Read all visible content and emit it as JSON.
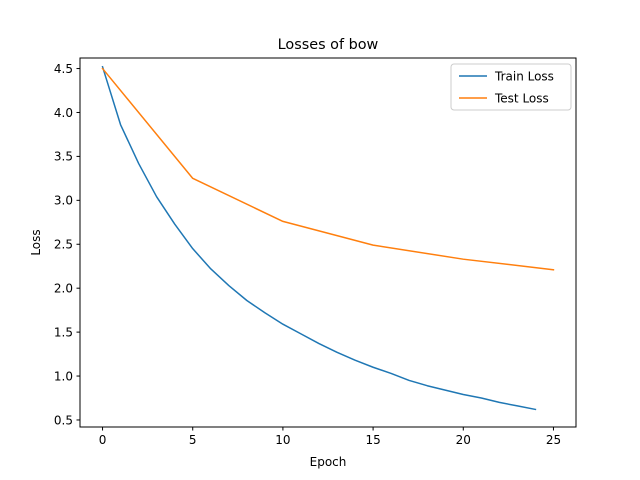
{
  "chart_data": {
    "type": "line",
    "title": "Losses of bow",
    "xlabel": "Epoch",
    "ylabel": "Loss",
    "xlim": [
      -1.25,
      26.25
    ],
    "ylim": [
      0.42,
      4.62
    ],
    "xticks": [
      0,
      5,
      10,
      15,
      20,
      25
    ],
    "xtick_labels": [
      "0",
      "5",
      "10",
      "15",
      "20",
      "25"
    ],
    "yticks": [
      0.5,
      1.0,
      1.5,
      2.0,
      2.5,
      3.0,
      3.5,
      4.0,
      4.5
    ],
    "ytick_labels": [
      "0.5",
      "1.0",
      "1.5",
      "2.0",
      "2.5",
      "3.0",
      "3.5",
      "4.0",
      "4.5"
    ],
    "grid": false,
    "legend_position": "top-right",
    "series": [
      {
        "name": "Train Loss",
        "color": "#1f77b4",
        "x": [
          0,
          1,
          2,
          3,
          4,
          5,
          6,
          7,
          8,
          9,
          10,
          11,
          12,
          13,
          14,
          15,
          16,
          17,
          18,
          19,
          20,
          21,
          22,
          23,
          24
        ],
        "values": [
          4.52,
          3.86,
          3.42,
          3.04,
          2.73,
          2.45,
          2.22,
          2.03,
          1.86,
          1.72,
          1.59,
          1.48,
          1.37,
          1.27,
          1.18,
          1.1,
          1.03,
          0.95,
          0.89,
          0.84,
          0.79,
          0.75,
          0.7,
          0.66,
          0.62
        ]
      },
      {
        "name": "Test Loss",
        "color": "#ff7f0e",
        "x": [
          0,
          5,
          10,
          15,
          20,
          25
        ],
        "values": [
          4.5,
          3.25,
          2.76,
          2.49,
          2.33,
          2.21
        ]
      }
    ]
  }
}
